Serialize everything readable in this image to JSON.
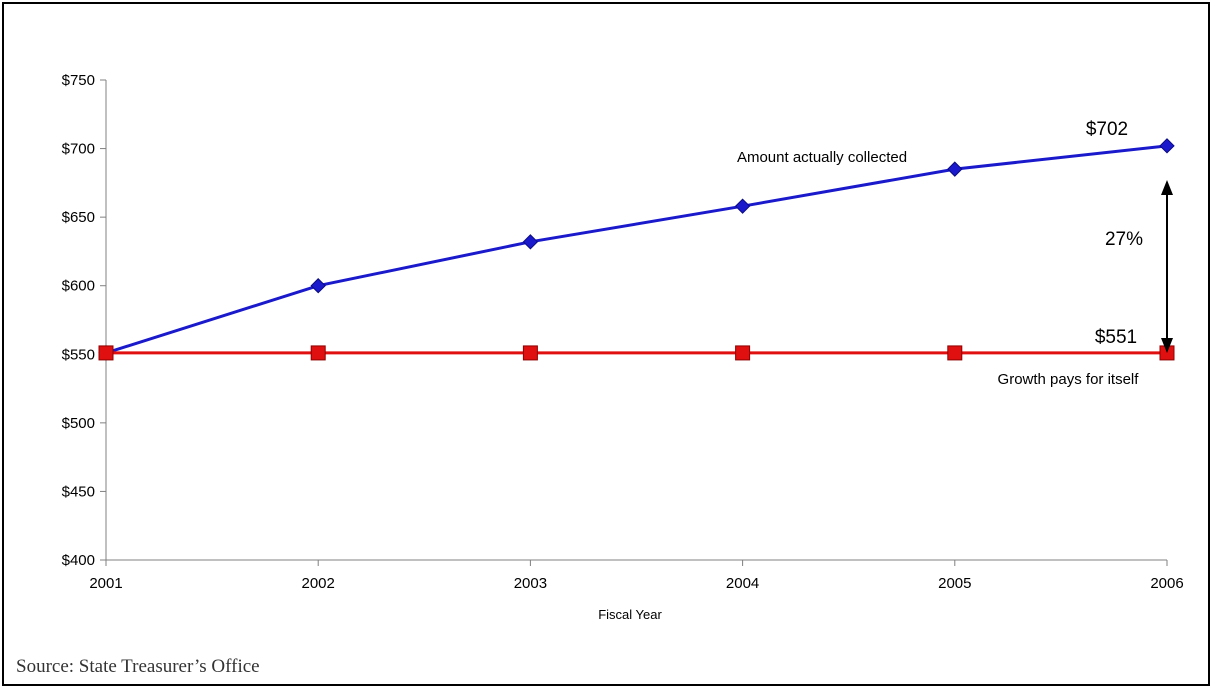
{
  "chart_data": {
    "type": "line",
    "x": [
      "2001",
      "2002",
      "2003",
      "2004",
      "2005",
      "2006"
    ],
    "xlabel": "Fiscal Year",
    "ylabel": "",
    "ylim": [
      400,
      750
    ],
    "yticks": [
      "$400",
      "$450",
      "$500",
      "$550",
      "$600",
      "$650",
      "$700",
      "$750"
    ],
    "grid": false,
    "series": [
      {
        "name": "Amount actually collected",
        "values": [
          551,
          600,
          632,
          658,
          685,
          702
        ],
        "color": "#1a1acc",
        "marker": "diamond"
      },
      {
        "name": "Growth pays for itself",
        "values": [
          551,
          551,
          551,
          551,
          551,
          551
        ],
        "color": "#e01010",
        "marker": "square"
      }
    ],
    "annotations": {
      "end_value_top": "$702",
      "end_value_bottom": "$551",
      "gap_percent": "27%"
    }
  },
  "source": "Source: State Treasurer’s Office"
}
